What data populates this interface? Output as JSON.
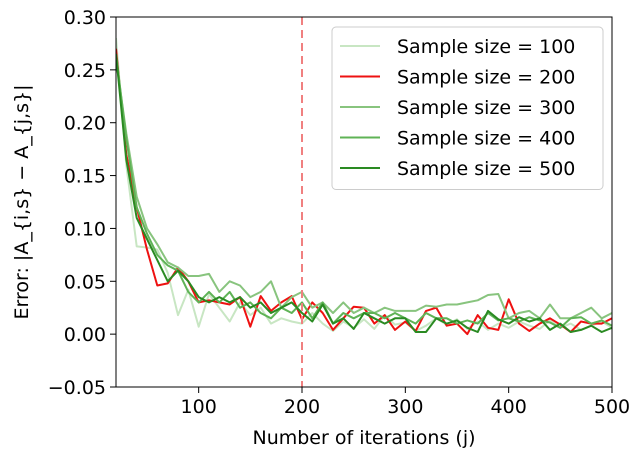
{
  "chart_data": {
    "type": "line",
    "xlabel": "Number of iterations (j)",
    "ylabel": "Error: |A_{i,s} − A_{j,s}|",
    "xlim": [
      20,
      500
    ],
    "ylim": [
      -0.05,
      0.3
    ],
    "x_ticks": [
      "100",
      "200",
      "300",
      "400",
      "500"
    ],
    "y_ticks": [
      "−0.05",
      "0.00",
      "0.05",
      "0.10",
      "0.15",
      "0.20",
      "0.25",
      "0.30"
    ],
    "grid": false,
    "legend_position": "top-right",
    "annotations": [
      {
        "type": "vertical-dashed-line",
        "x": 200,
        "color": "#f08080"
      }
    ],
    "x": [
      20,
      30,
      40,
      50,
      60,
      70,
      80,
      90,
      100,
      110,
      120,
      130,
      140,
      150,
      160,
      170,
      180,
      190,
      200,
      210,
      220,
      230,
      240,
      250,
      260,
      270,
      280,
      290,
      300,
      310,
      320,
      330,
      340,
      350,
      360,
      370,
      380,
      390,
      400,
      410,
      420,
      430,
      440,
      450,
      460,
      470,
      480,
      490,
      500
    ],
    "series": [
      {
        "name": "Sample size = 100",
        "color": "#c8e6c3",
        "values": [
          0.28,
          0.16,
          0.083,
          0.082,
          0.08,
          0.058,
          0.018,
          0.042,
          0.007,
          0.038,
          0.025,
          0.012,
          0.03,
          0.018,
          0.025,
          0.01,
          0.015,
          0.012,
          0.01,
          0.02,
          0.01,
          0.003,
          0.012,
          0.006,
          0.014,
          0.005,
          0.018,
          0.009,
          0.011,
          0.003,
          0.008,
          0.015,
          0.009,
          0.014,
          0.005,
          0.012,
          0.004,
          0.01,
          0.006,
          0.012,
          0.008,
          0.005,
          0.013,
          0.006,
          0.01,
          0.004,
          0.008,
          0.012,
          0.006
        ]
      },
      {
        "name": "Sample size = 200",
        "color": "#ee1111",
        "values": [
          0.27,
          0.17,
          0.12,
          0.08,
          0.046,
          0.048,
          0.063,
          0.05,
          0.03,
          0.032,
          0.03,
          0.028,
          0.035,
          0.007,
          0.036,
          0.022,
          0.03,
          0.036,
          0.014,
          0.03,
          0.02,
          0.004,
          0.015,
          0.026,
          0.025,
          0.01,
          0.018,
          0.004,
          0.012,
          0.003,
          0.022,
          0.025,
          0.008,
          0.01,
          0.0,
          0.018,
          0.006,
          0.004,
          0.033,
          0.01,
          0.003,
          0.01,
          0.015,
          0.009,
          0.002,
          0.012,
          0.01,
          0.01,
          0.015
        ]
      },
      {
        "name": "Sample size = 300",
        "color": "#88c47e",
        "values": [
          0.26,
          0.19,
          0.13,
          0.1,
          0.085,
          0.068,
          0.063,
          0.055,
          0.055,
          0.057,
          0.04,
          0.05,
          0.046,
          0.035,
          0.04,
          0.05,
          0.025,
          0.035,
          0.04,
          0.025,
          0.03,
          0.02,
          0.03,
          0.02,
          0.025,
          0.02,
          0.025,
          0.022,
          0.022,
          0.022,
          0.027,
          0.026,
          0.028,
          0.028,
          0.03,
          0.032,
          0.037,
          0.038,
          0.015,
          0.02,
          0.022,
          0.015,
          0.028,
          0.015,
          0.015,
          0.02,
          0.025,
          0.015,
          0.02
        ]
      },
      {
        "name": "Sample size = 400",
        "color": "#5fb356",
        "values": [
          0.265,
          0.185,
          0.12,
          0.095,
          0.075,
          0.065,
          0.06,
          0.04,
          0.03,
          0.04,
          0.03,
          0.04,
          0.025,
          0.03,
          0.02,
          0.015,
          0.025,
          0.02,
          0.03,
          0.015,
          0.03,
          0.01,
          0.02,
          0.015,
          0.02,
          0.02,
          0.015,
          0.02,
          0.015,
          0.01,
          0.02,
          0.015,
          0.015,
          0.01,
          0.013,
          0.01,
          0.02,
          0.013,
          0.015,
          0.012,
          0.016,
          0.013,
          0.011,
          0.006,
          0.015,
          0.016,
          0.01,
          0.013,
          0.008
        ]
      },
      {
        "name": "Sample size = 500",
        "color": "#2a8a22",
        "values": [
          0.265,
          0.165,
          0.11,
          0.09,
          0.07,
          0.05,
          0.06,
          0.05,
          0.035,
          0.03,
          0.035,
          0.03,
          0.035,
          0.025,
          0.03,
          0.02,
          0.025,
          0.03,
          0.02,
          0.012,
          0.028,
          0.01,
          0.015,
          0.005,
          0.02,
          0.015,
          0.01,
          0.015,
          0.015,
          0.002,
          0.002,
          0.015,
          0.01,
          0.013,
          0.006,
          0.002,
          0.022,
          0.014,
          0.01,
          0.016,
          0.012,
          0.015,
          0.004,
          0.01,
          0.002,
          0.004,
          0.008,
          0.002,
          0.006
        ]
      }
    ]
  }
}
